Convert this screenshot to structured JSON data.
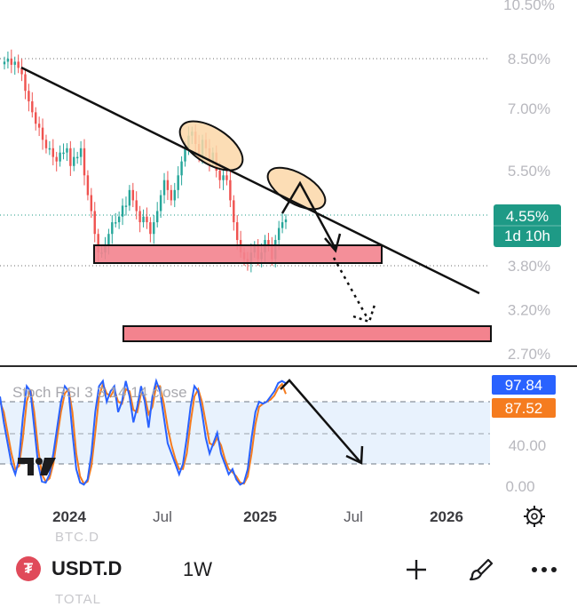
{
  "symbol": {
    "name": "USDT.D",
    "interval": "1W",
    "icon": "tether-icon",
    "icon_glyph": "₮",
    "ghost_above": "BTC.D",
    "ghost_below": "TOTAL"
  },
  "price_badge": {
    "value": "4.55%",
    "countdown": "1d 10h",
    "color": "#1e9a86"
  },
  "indicator": {
    "title": "Stoch RSI 3 3 14 14 close",
    "k_value": "97.84",
    "d_value": "87.52",
    "k_color": "#2962ff",
    "d_color": "#f57c1f",
    "levels": [
      "40.00",
      "0.00"
    ]
  },
  "colors": {
    "up_candle": "#26a69a",
    "down_candle": "#ef5350",
    "support_zone": "#f3838e",
    "ellipse_fill": "#fbd7a8"
  },
  "toolbar": {
    "add_icon": "plus-icon",
    "draw_icon": "brush-icon",
    "more_icon": "more-icon",
    "settings_icon": "gear-icon"
  },
  "chart_data": {
    "type": "candlestick",
    "price_axis": [
      "10.50%",
      "8.50%",
      "7.00%",
      "5.50%",
      "3.80%",
      "3.20%",
      "2.70%"
    ],
    "time_axis": [
      "2024",
      "Jul",
      "2025",
      "Jul",
      "2026"
    ],
    "ylim": [
      2.5,
      10.5
    ],
    "y_scale": "log",
    "grid": false,
    "last_price": 4.55,
    "closes": [
      8.4,
      8.5,
      8.3,
      8.4,
      8.2,
      8.0,
      7.5,
      7.2,
      6.9,
      6.6,
      6.5,
      6.2,
      6.0,
      6.0,
      5.8,
      5.7,
      5.9,
      5.9,
      6.0,
      5.6,
      5.8,
      5.8,
      6.0,
      5.4,
      5.0,
      4.7,
      4.3,
      4.0,
      4.0,
      4.1,
      4.3,
      4.5,
      4.5,
      4.6,
      4.8,
      4.8,
      5.1,
      4.9,
      4.7,
      4.5,
      4.6,
      4.5,
      4.3,
      4.5,
      4.7,
      5.0,
      5.3,
      5.1,
      4.9,
      5.1,
      5.4,
      5.7,
      6.0,
      6.3,
      6.4,
      6.1,
      5.8,
      6.2,
      6.0,
      5.7,
      5.9,
      5.5,
      5.3,
      5.4,
      5.3,
      4.9,
      4.5,
      4.2,
      4.0,
      3.9,
      3.85,
      4.0,
      4.1,
      3.9,
      4.0,
      4.2,
      4.1,
      3.9,
      4.2,
      4.4,
      4.5,
      4.55
    ],
    "support_zone": [
      3.8,
      4.05
    ],
    "target_zone": [
      2.75,
      2.88
    ],
    "trendline": [
      8.45,
      3.3
    ],
    "stoch_rsi": {
      "k": [
        85,
        60,
        40,
        20,
        10,
        25,
        65,
        95,
        90,
        55,
        20,
        3,
        2,
        10,
        30,
        55,
        80,
        95,
        90,
        50,
        15,
        2,
        0,
        5,
        30,
        70,
        95,
        100,
        80,
        90,
        95,
        70,
        80,
        100,
        85,
        60,
        75,
        95,
        80,
        55,
        85,
        100,
        90,
        65,
        40,
        30,
        20,
        10,
        20,
        45,
        75,
        95,
        90,
        70,
        45,
        30,
        40,
        50,
        30,
        20,
        10,
        15,
        5,
        0,
        2,
        15,
        45,
        70,
        80,
        78,
        80,
        85,
        90,
        98,
        100,
        97.84
      ],
      "d": [
        80,
        70,
        50,
        30,
        15,
        18,
        45,
        80,
        92,
        70,
        35,
        10,
        3,
        6,
        20,
        45,
        70,
        88,
        92,
        70,
        30,
        8,
        1,
        3,
        18,
        50,
        85,
        97,
        88,
        85,
        92,
        80,
        78,
        92,
        90,
        72,
        70,
        88,
        85,
        68,
        75,
        95,
        95,
        78,
        55,
        38,
        25,
        15,
        15,
        30,
        60,
        85,
        92,
        80,
        60,
        40,
        38,
        45,
        38,
        25,
        15,
        12,
        8,
        2,
        1,
        8,
        30,
        58,
        75,
        78,
        80,
        82,
        86,
        93,
        97,
        87.52
      ]
    }
  }
}
